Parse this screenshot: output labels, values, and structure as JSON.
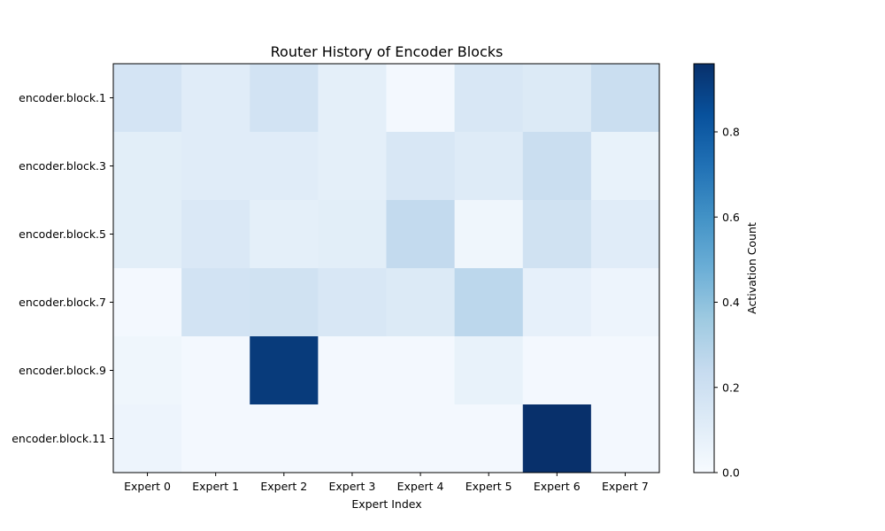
{
  "chart_data": {
    "type": "heatmap",
    "title": "Router History of Encoder Blocks",
    "xlabel": "Expert Index",
    "ylabel": "",
    "x_categories": [
      "Expert 0",
      "Expert 1",
      "Expert 2",
      "Expert 3",
      "Expert 4",
      "Expert 5",
      "Expert 6",
      "Expert 7"
    ],
    "y_categories": [
      "encoder.block.1",
      "encoder.block.3",
      "encoder.block.5",
      "encoder.block.7",
      "encoder.block.9",
      "encoder.block.11"
    ],
    "values": [
      [
        0.17,
        0.11,
        0.18,
        0.09,
        0.02,
        0.15,
        0.13,
        0.22
      ],
      [
        0.1,
        0.11,
        0.11,
        0.09,
        0.15,
        0.12,
        0.22,
        0.07
      ],
      [
        0.1,
        0.14,
        0.09,
        0.1,
        0.25,
        0.04,
        0.19,
        0.11
      ],
      [
        0.02,
        0.18,
        0.19,
        0.15,
        0.13,
        0.27,
        0.08,
        0.05
      ],
      [
        0.04,
        0.02,
        0.92,
        0.02,
        0.02,
        0.07,
        0.02,
        0.02
      ],
      [
        0.05,
        0.02,
        0.02,
        0.02,
        0.02,
        0.02,
        0.96,
        0.02
      ]
    ],
    "colorbar": {
      "label": "Activation Count",
      "range": [
        0.0,
        0.96
      ],
      "ticks": [
        0.0,
        0.2,
        0.4,
        0.6,
        0.8
      ],
      "tick_labels": [
        "0.0",
        "0.2",
        "0.4",
        "0.6",
        "0.8"
      ],
      "colormap": "Blues"
    },
    "grid": false
  }
}
